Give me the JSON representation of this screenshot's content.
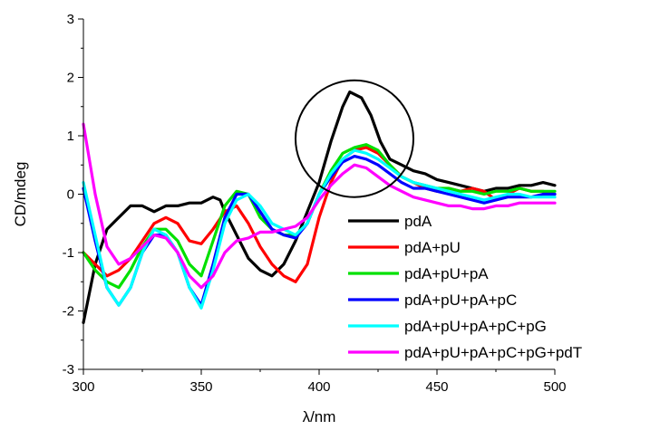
{
  "chart_data": {
    "type": "line",
    "title": "",
    "xlabel": "λ/nm",
    "ylabel": "CD/mdeg",
    "xlim": [
      300,
      500
    ],
    "ylim": [
      -3,
      3
    ],
    "xticks": [
      "300",
      "350",
      "400",
      "450",
      "500"
    ],
    "yticks": [
      "-3",
      "-2",
      "-1",
      "0",
      "1",
      "2",
      "3"
    ],
    "grid": false,
    "legend_position": "bottom-right",
    "annotation": {
      "type": "circle",
      "center": [
        415,
        0.95
      ],
      "radius_x": 25,
      "radius_y": 1.0
    },
    "series": [
      {
        "name": "pdA",
        "color": "#000000",
        "x": [
          300,
          305,
          310,
          315,
          320,
          325,
          330,
          335,
          340,
          345,
          350,
          355,
          358,
          360,
          365,
          370,
          375,
          380,
          385,
          390,
          395,
          400,
          405,
          410,
          413,
          418,
          422,
          426,
          430,
          435,
          440,
          445,
          450,
          455,
          460,
          465,
          470,
          475,
          480,
          485,
          490,
          495,
          500
        ],
        "y": [
          -2.2,
          -1.2,
          -0.6,
          -0.4,
          -0.2,
          -0.2,
          -0.3,
          -0.2,
          -0.2,
          -0.15,
          -0.15,
          -0.05,
          -0.1,
          -0.3,
          -0.7,
          -1.1,
          -1.3,
          -1.4,
          -1.2,
          -0.8,
          -0.3,
          0.2,
          0.9,
          1.5,
          1.75,
          1.65,
          1.35,
          0.9,
          0.6,
          0.5,
          0.4,
          0.35,
          0.25,
          0.2,
          0.15,
          0.1,
          0.05,
          0.1,
          0.1,
          0.15,
          0.15,
          0.2,
          0.15
        ]
      },
      {
        "name": "pdA+pU",
        "color": "#ff0000",
        "x": [
          300,
          305,
          310,
          315,
          320,
          325,
          330,
          335,
          340,
          345,
          350,
          355,
          360,
          365,
          370,
          375,
          380,
          385,
          390,
          395,
          400,
          405,
          410,
          415,
          420,
          425,
          430,
          435,
          440,
          445,
          450,
          455,
          460,
          465,
          470,
          475,
          480,
          485,
          490,
          495,
          500
        ],
        "y": [
          -1.0,
          -1.2,
          -1.4,
          -1.3,
          -1.1,
          -0.8,
          -0.5,
          -0.4,
          -0.5,
          -0.8,
          -0.85,
          -0.6,
          -0.3,
          -0.2,
          -0.5,
          -0.9,
          -1.2,
          -1.4,
          -1.5,
          -1.2,
          -0.4,
          0.2,
          0.6,
          0.75,
          0.8,
          0.7,
          0.5,
          0.3,
          0.2,
          0.1,
          0.05,
          0.1,
          0.05,
          0.1,
          0.05,
          -0.1,
          0.0,
          0.1,
          0.05,
          0.05,
          0.0
        ]
      },
      {
        "name": "pdA+pU+pA",
        "color": "#00e000",
        "x": [
          300,
          305,
          310,
          315,
          320,
          325,
          330,
          335,
          340,
          345,
          350,
          355,
          360,
          365,
          370,
          375,
          380,
          385,
          390,
          395,
          400,
          405,
          410,
          415,
          420,
          425,
          430,
          435,
          440,
          445,
          450,
          455,
          460,
          465,
          470,
          475,
          480,
          485,
          490,
          495,
          500
        ],
        "y": [
          -1.0,
          -1.3,
          -1.5,
          -1.6,
          -1.3,
          -0.9,
          -0.6,
          -0.6,
          -0.8,
          -1.2,
          -1.4,
          -0.8,
          -0.2,
          0.05,
          0.0,
          -0.4,
          -0.6,
          -0.7,
          -0.7,
          -0.5,
          0.0,
          0.4,
          0.7,
          0.8,
          0.85,
          0.75,
          0.5,
          0.3,
          0.2,
          0.15,
          0.1,
          0.1,
          0.05,
          0.05,
          0.0,
          0.05,
          0.05,
          0.1,
          0.05,
          0.05,
          0.05
        ]
      },
      {
        "name": "pdA+pU+pA+pC",
        "color": "#0000ff",
        "x": [
          300,
          305,
          310,
          315,
          320,
          325,
          330,
          335,
          340,
          345,
          350,
          355,
          360,
          365,
          370,
          375,
          380,
          385,
          390,
          395,
          400,
          405,
          410,
          415,
          420,
          425,
          430,
          435,
          440,
          445,
          450,
          455,
          460,
          465,
          470,
          475,
          480,
          485,
          490,
          495,
          500
        ],
        "y": [
          0.1,
          -0.8,
          -1.6,
          -1.9,
          -1.6,
          -1.0,
          -0.7,
          -0.7,
          -1.0,
          -1.6,
          -1.9,
          -1.2,
          -0.4,
          0.0,
          0.0,
          -0.3,
          -0.6,
          -0.7,
          -0.75,
          -0.5,
          0.0,
          0.3,
          0.55,
          0.65,
          0.6,
          0.5,
          0.35,
          0.2,
          0.1,
          0.1,
          0.05,
          0.0,
          -0.05,
          -0.1,
          -0.15,
          -0.1,
          -0.05,
          -0.05,
          -0.05,
          0.0,
          0.0
        ]
      },
      {
        "name": "pdA+pU+pA+pC+pG",
        "color": "#00ffff",
        "x": [
          300,
          305,
          310,
          315,
          320,
          325,
          330,
          335,
          340,
          345,
          350,
          355,
          360,
          365,
          370,
          375,
          380,
          385,
          390,
          395,
          400,
          405,
          410,
          415,
          420,
          425,
          430,
          435,
          440,
          445,
          450,
          455,
          460,
          465,
          470,
          475,
          480,
          485,
          490,
          495,
          500
        ],
        "y": [
          0.2,
          -0.7,
          -1.6,
          -1.9,
          -1.6,
          -1.0,
          -0.6,
          -0.7,
          -1.0,
          -1.6,
          -1.95,
          -1.3,
          -0.5,
          -0.1,
          0.0,
          -0.2,
          -0.5,
          -0.6,
          -0.7,
          -0.5,
          0.0,
          0.35,
          0.6,
          0.75,
          0.7,
          0.6,
          0.45,
          0.3,
          0.2,
          0.15,
          0.1,
          0.05,
          0.0,
          -0.05,
          -0.1,
          -0.05,
          0.0,
          0.0,
          -0.05,
          -0.05,
          -0.05
        ]
      },
      {
        "name": "pdA+pU+pA+pC+pG+pdT",
        "color": "#ff00ff",
        "x": [
          300,
          305,
          310,
          315,
          320,
          325,
          330,
          335,
          340,
          345,
          350,
          355,
          360,
          365,
          370,
          375,
          380,
          385,
          390,
          395,
          400,
          405,
          410,
          415,
          420,
          425,
          430,
          435,
          440,
          445,
          450,
          455,
          460,
          465,
          470,
          475,
          480,
          485,
          490,
          495,
          500
        ],
        "y": [
          1.2,
          0.0,
          -0.9,
          -1.2,
          -1.1,
          -0.9,
          -0.7,
          -0.75,
          -1.0,
          -1.4,
          -1.6,
          -1.4,
          -1.0,
          -0.8,
          -0.75,
          -0.65,
          -0.65,
          -0.6,
          -0.55,
          -0.4,
          -0.1,
          0.15,
          0.35,
          0.5,
          0.45,
          0.3,
          0.15,
          0.05,
          -0.05,
          -0.1,
          -0.15,
          -0.2,
          -0.2,
          -0.25,
          -0.25,
          -0.2,
          -0.2,
          -0.15,
          -0.15,
          -0.15,
          -0.15
        ]
      }
    ]
  }
}
